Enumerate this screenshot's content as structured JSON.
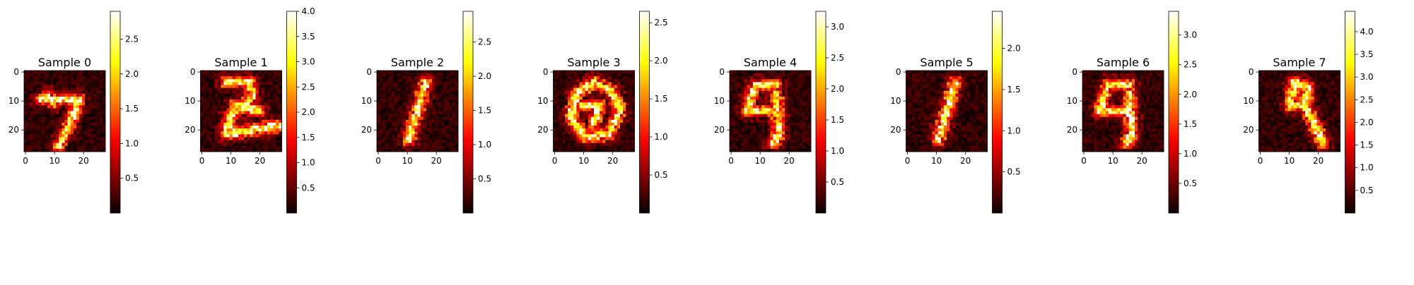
{
  "chart_data": [
    {
      "type": "heatmap",
      "title": "Sample 0",
      "colormap": "hot",
      "x_ticks": [
        0,
        10,
        20
      ],
      "y_ticks": [
        0,
        10,
        20
      ],
      "colorbar_ticks": [
        0.5,
        1.0,
        1.5,
        2.0,
        2.5
      ],
      "colorbar_range": [
        0.0,
        2.9
      ],
      "grid": false,
      "digit_shape": "7"
    },
    {
      "type": "heatmap",
      "title": "Sample 1",
      "colormap": "hot",
      "x_ticks": [
        0,
        10,
        20
      ],
      "y_ticks": [
        0,
        10,
        20
      ],
      "colorbar_ticks": [
        0.5,
        1.0,
        1.5,
        2.0,
        2.5,
        3.0,
        3.5,
        4.0
      ],
      "colorbar_range": [
        0.0,
        4.0
      ],
      "grid": false,
      "digit_shape": "2"
    },
    {
      "type": "heatmap",
      "title": "Sample 2",
      "colormap": "hot",
      "x_ticks": [
        0,
        10,
        20
      ],
      "y_ticks": [
        0,
        10,
        20
      ],
      "colorbar_ticks": [
        0.5,
        1.0,
        1.5,
        2.0,
        2.5
      ],
      "colorbar_range": [
        0.0,
        2.95
      ],
      "grid": false,
      "digit_shape": "1"
    },
    {
      "type": "heatmap",
      "title": "Sample 3",
      "colormap": "hot",
      "x_ticks": [
        0,
        10,
        20
      ],
      "y_ticks": [
        0,
        10,
        20
      ],
      "colorbar_ticks": [
        0.5,
        1.0,
        1.5,
        2.0,
        2.5
      ],
      "colorbar_range": [
        0.0,
        2.65
      ],
      "grid": false,
      "digit_shape": "0"
    },
    {
      "type": "heatmap",
      "title": "Sample 4",
      "colormap": "hot",
      "x_ticks": [
        0,
        10,
        20
      ],
      "y_ticks": [
        0,
        10,
        20
      ],
      "colorbar_ticks": [
        0.5,
        1.0,
        1.5,
        2.0,
        2.5,
        3.0
      ],
      "colorbar_range": [
        0.0,
        3.25
      ],
      "grid": false,
      "digit_shape": "4"
    },
    {
      "type": "heatmap",
      "title": "Sample 5",
      "colormap": "hot",
      "x_ticks": [
        0,
        10,
        20
      ],
      "y_ticks": [
        0,
        10,
        20
      ],
      "colorbar_ticks": [
        0.5,
        1.0,
        1.5,
        2.0
      ],
      "colorbar_range": [
        0.0,
        2.45
      ],
      "grid": false,
      "digit_shape": "1"
    },
    {
      "type": "heatmap",
      "title": "Sample 6",
      "colormap": "hot",
      "x_ticks": [
        0,
        10,
        20
      ],
      "y_ticks": [
        0,
        10,
        20
      ],
      "colorbar_ticks": [
        0.5,
        1.0,
        1.5,
        2.0,
        2.5,
        3.0
      ],
      "colorbar_range": [
        0.0,
        3.4
      ],
      "grid": false,
      "digit_shape": "4"
    },
    {
      "type": "heatmap",
      "title": "Sample 7",
      "colormap": "hot",
      "x_ticks": [
        0,
        10,
        20
      ],
      "y_ticks": [
        0,
        10,
        20
      ],
      "colorbar_ticks": [
        0.5,
        1.0,
        1.5,
        2.0,
        2.5,
        3.0,
        3.5,
        4.0
      ],
      "colorbar_range": [
        0.0,
        4.45
      ],
      "grid": false,
      "digit_shape": "9"
    }
  ]
}
